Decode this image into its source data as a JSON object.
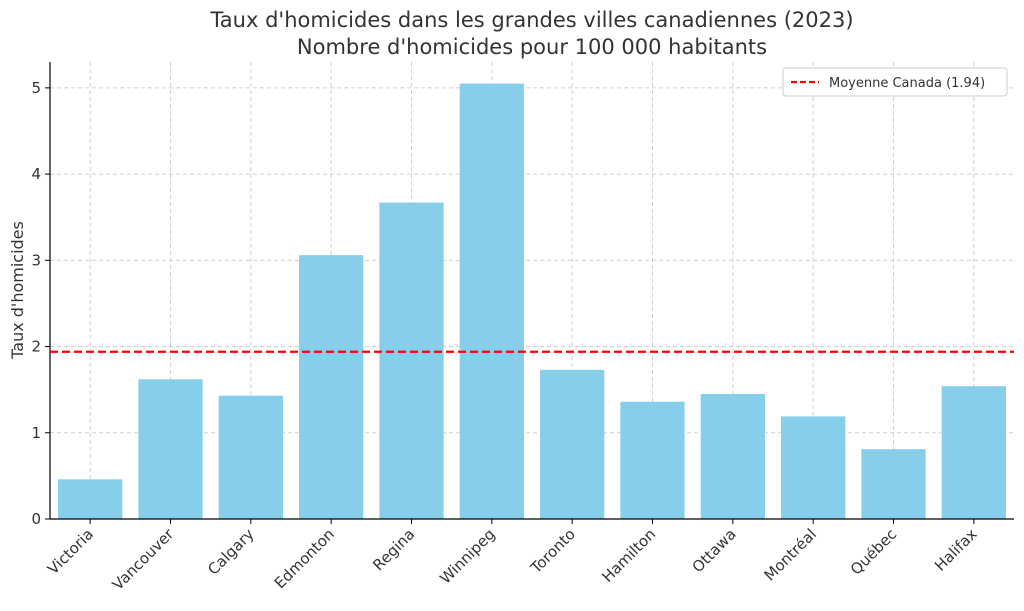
{
  "chart_data": {
    "type": "bar",
    "title": "Taux d'homicides dans les grandes villes canadiennes (2023)",
    "subtitle": "Nombre d'homicides pour 100 000 habitants",
    "xlabel": "",
    "ylabel": "Taux d'homicides",
    "categories": [
      "Victoria",
      "Vancouver",
      "Calgary",
      "Edmonton",
      "Regina",
      "Winnipeg",
      "Toronto",
      "Hamilton",
      "Ottawa",
      "Montréal",
      "Québec",
      "Halifax"
    ],
    "values": [
      0.46,
      1.62,
      1.43,
      3.06,
      3.67,
      5.05,
      1.73,
      1.36,
      1.45,
      1.19,
      0.81,
      1.54
    ],
    "ylim": [
      0,
      5.3
    ],
    "yticks": [
      0,
      1,
      2,
      3,
      4,
      5
    ],
    "grid": true,
    "bar_color": "#87CEEB",
    "reference_line": {
      "label": "Moyenne Canada (1.94)",
      "value": 1.94,
      "color": "#ff0000",
      "style": "dashed"
    },
    "legend": {
      "position": "top-right",
      "entries": [
        "Moyenne Canada (1.94)"
      ]
    }
  }
}
